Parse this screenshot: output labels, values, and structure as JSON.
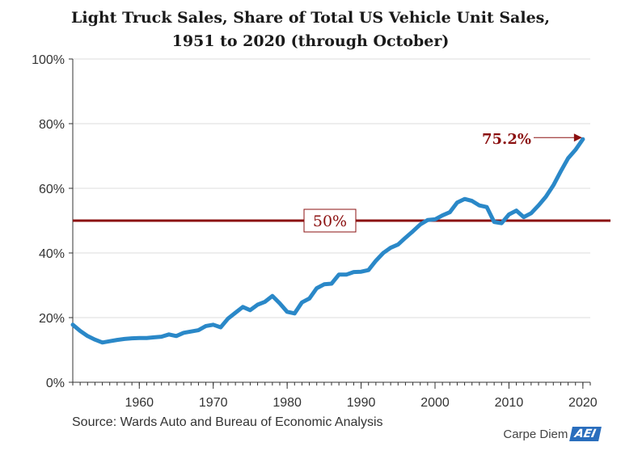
{
  "title_line1": "Light Truck Sales, Share of Total US Vehicle Unit Sales,",
  "title_line2": "1951 to 2020 (through October)",
  "source": "Source: Wards Auto and Bureau of Economic Analysis",
  "brand": {
    "text": "Carpe Diem",
    "logo": "AEI"
  },
  "colors": {
    "line": "#2a88c8",
    "reference": "#8b1010",
    "grid": "#dddddd",
    "axis": "#333333"
  },
  "chart_data": {
    "type": "line",
    "title": "Light Truck Sales, Share of Total US Vehicle Unit Sales, 1951 to 2020 (through October)",
    "xlabel": "",
    "ylabel": "",
    "xlim": [
      1951,
      2021
    ],
    "ylim": [
      0,
      100
    ],
    "x_ticks": [
      1960,
      1970,
      1980,
      1990,
      2000,
      2010,
      2020
    ],
    "y_ticks": [
      0,
      20,
      40,
      60,
      80,
      100
    ],
    "y_tick_labels": [
      "0%",
      "20%",
      "40%",
      "60%",
      "80%",
      "100%"
    ],
    "grid": true,
    "series": [
      {
        "x": [
          1951,
          1952,
          1953,
          1954,
          1955,
          1956,
          1957,
          1958,
          1959,
          1960,
          1961,
          1962,
          1963,
          1964,
          1965,
          1966,
          1967,
          1968,
          1969,
          1970,
          1971,
          1972,
          1973,
          1974,
          1975,
          1976,
          1977,
          1978,
          1979,
          1980,
          1981,
          1982,
          1983,
          1984,
          1985,
          1986,
          1987,
          1988,
          1989,
          1990,
          1991,
          1992,
          1993,
          1994,
          1995,
          1996,
          1997,
          1998,
          1999,
          2000,
          2001,
          2002,
          2003,
          2004,
          2005,
          2006,
          2007,
          2008,
          2009,
          2010,
          2011,
          2012,
          2013,
          2014,
          2015,
          2016,
          2017,
          2018,
          2019,
          2020
        ],
        "values": [
          17.8,
          15.9,
          14.3,
          13.2,
          12.3,
          12.7,
          13.1,
          13.4,
          13.6,
          13.7,
          13.7,
          13.9,
          14.1,
          14.8,
          14.3,
          15.3,
          15.7,
          16.1,
          17.4,
          17.8,
          17.0,
          19.7,
          21.5,
          23.3,
          22.3,
          24.0,
          24.9,
          26.7,
          24.4,
          21.8,
          21.3,
          24.7,
          25.9,
          29.1,
          30.3,
          30.5,
          33.3,
          33.3,
          34.1,
          34.2,
          34.7,
          37.6,
          40.0,
          41.6,
          42.6,
          44.7,
          46.7,
          48.8,
          50.2,
          50.4,
          51.6,
          52.6,
          55.6,
          56.7,
          56.1,
          54.7,
          54.2,
          49.6,
          49.2,
          51.9,
          53.1,
          51.1,
          52.3,
          54.7,
          57.4,
          60.9,
          65.2,
          69.3,
          71.9,
          75.2
        ]
      }
    ],
    "reference_line": {
      "value": 50,
      "label": "50%"
    },
    "annotation": {
      "text": "75.2%",
      "x": 2020,
      "value": 75.2
    }
  }
}
